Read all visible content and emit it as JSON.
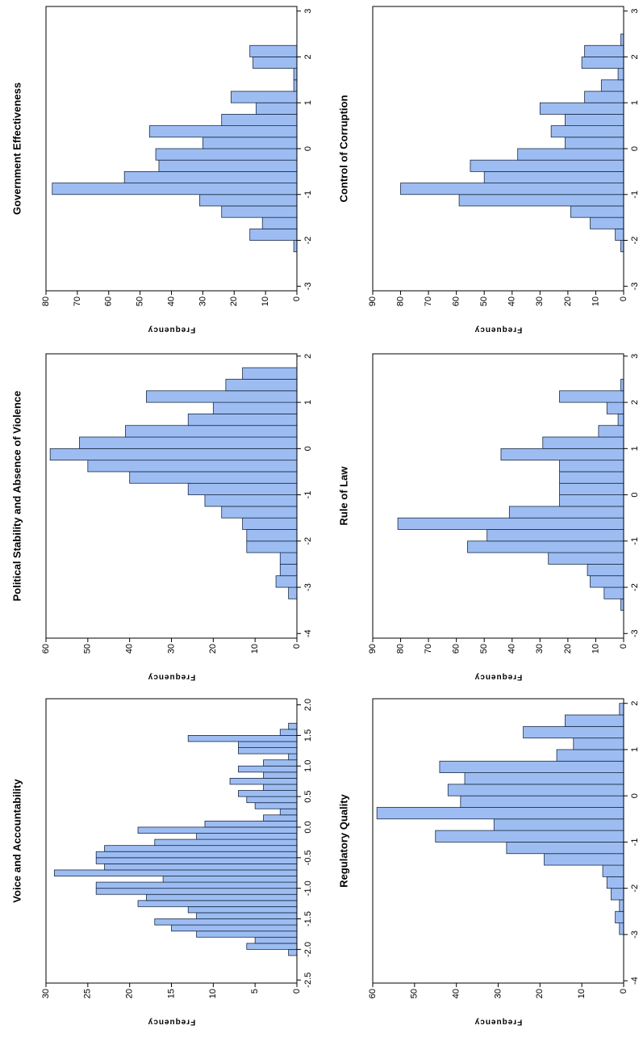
{
  "chart_data": [
    {
      "type": "histogram",
      "title": "Government Effectiveness",
      "ylabel": "Frequency",
      "color": "#9dbdf2",
      "bins": [
        -2.25,
        -2,
        -1.75,
        -1.5,
        -1.25,
        -1,
        -0.75,
        -0.5,
        -0.25,
        0,
        0.25,
        0.5,
        0.75,
        1,
        1.25,
        1.5,
        1.75,
        2,
        2.25
      ],
      "values": [
        1,
        15,
        11,
        24,
        31,
        78,
        55,
        44,
        45,
        30,
        47,
        24,
        13,
        21,
        1,
        1,
        14,
        15
      ],
      "xlim": [
        -3.1,
        3.1
      ],
      "ylim": [
        0,
        80
      ],
      "xticks": [
        -3,
        -2,
        -1,
        0,
        1,
        2,
        3
      ],
      "yticks": [
        0,
        10,
        20,
        30,
        40,
        50,
        60,
        70,
        80
      ]
    },
    {
      "type": "histogram",
      "title": "Control of Corruption",
      "ylabel": "Frequency",
      "color": "#9dbdf2",
      "bins": [
        -2.25,
        -2,
        -1.75,
        -1.5,
        -1.25,
        -1,
        -0.75,
        -0.5,
        -0.25,
        0,
        0.25,
        0.5,
        0.75,
        1,
        1.25,
        1.5,
        1.75,
        2,
        2.25,
        2.5
      ],
      "values": [
        1,
        3,
        12,
        19,
        59,
        80,
        50,
        55,
        38,
        21,
        26,
        21,
        30,
        14,
        8,
        2,
        15,
        14,
        1
      ],
      "xlim": [
        -3.1,
        3.1
      ],
      "ylim": [
        0,
        90
      ],
      "xticks": [
        -3,
        -2,
        -1,
        0,
        1,
        2,
        3
      ],
      "yticks": [
        0,
        10,
        20,
        30,
        40,
        50,
        60,
        70,
        80,
        90
      ]
    },
    {
      "type": "histogram",
      "title": "Political Stability and Absence of Violence",
      "ylabel": "Frequency",
      "color": "#9dbdf2",
      "bins": [
        -3.25,
        -3,
        -2.75,
        -2.5,
        -2.25,
        -2,
        -1.75,
        -1.5,
        -1.25,
        -1,
        -0.75,
        -0.5,
        -0.25,
        0,
        0.25,
        0.5,
        0.75,
        1,
        1.25,
        1.5,
        1.75
      ],
      "values": [
        2,
        5,
        4,
        4,
        12,
        12,
        13,
        18,
        22,
        26,
        40,
        50,
        59,
        52,
        41,
        26,
        20,
        36,
        17,
        13
      ],
      "xlim": [
        -4.1,
        2.05
      ],
      "ylim": [
        0,
        60
      ],
      "xticks": [
        -4,
        -3,
        -2,
        -1,
        0,
        1,
        2
      ],
      "yticks": [
        0,
        10,
        20,
        30,
        40,
        50,
        60
      ]
    },
    {
      "type": "histogram",
      "title": "Rule of Law",
      "ylabel": "Frequency",
      "color": "#9dbdf2",
      "bins": [
        -2.5,
        -2.25,
        -2,
        -1.75,
        -1.5,
        -1.25,
        -1,
        -0.75,
        -0.5,
        -0.25,
        0,
        0.25,
        0.5,
        0.75,
        1,
        1.25,
        1.5,
        1.75,
        2,
        2.25,
        2.5
      ],
      "values": [
        1,
        7,
        12,
        13,
        27,
        56,
        49,
        81,
        41,
        23,
        23,
        23,
        23,
        44,
        29,
        9,
        2,
        6,
        23,
        1
      ],
      "xlim": [
        -3.1,
        3.05
      ],
      "ylim": [
        0,
        90
      ],
      "xticks": [
        -3,
        -2,
        -1,
        0,
        1,
        2,
        3
      ],
      "yticks": [
        0,
        10,
        20,
        30,
        40,
        50,
        60,
        70,
        80,
        90
      ]
    },
    {
      "type": "histogram",
      "title": "Voice and Accountability",
      "ylabel": "Frequency",
      "color": "#9dbdf2",
      "bins": [
        -2.1,
        -2,
        -1.9,
        -1.8,
        -1.7,
        -1.6,
        -1.5,
        -1.4,
        -1.3,
        -1.2,
        -1.1,
        -1,
        -0.9,
        -0.8,
        -0.7,
        -0.6,
        -0.5,
        -0.4,
        -0.3,
        -0.2,
        -0.1,
        0,
        0.1,
        0.2,
        0.3,
        0.4,
        0.5,
        0.6,
        0.7,
        0.8,
        0.9,
        1,
        1.1,
        1.2,
        1.3,
        1.4,
        1.5,
        1.6,
        1.7
      ],
      "values": [
        1,
        6,
        5,
        12,
        15,
        17,
        12,
        13,
        19,
        18,
        24,
        24,
        16,
        29,
        23,
        24,
        24,
        23,
        17,
        12,
        19,
        11,
        4,
        2,
        5,
        6,
        7,
        4,
        8,
        4,
        7,
        4,
        1,
        7,
        7,
        13,
        2,
        1
      ],
      "xlim": [
        -2.55,
        2.1
      ],
      "ylim": [
        0,
        30
      ],
      "xticks": [
        {
          "value": -2.5,
          "label": "-2.5"
        },
        {
          "value": -2,
          "label": "-2.0"
        },
        {
          "value": -1.5,
          "label": "-1.5"
        },
        {
          "value": -1,
          "label": "-1.0"
        },
        {
          "value": -0.5,
          "label": "-0.5"
        },
        {
          "value": 0,
          "label": "0.0"
        },
        0.5,
        {
          "value": 1,
          "label": "1.0"
        },
        1.5,
        {
          "value": 2,
          "label": "2.0"
        }
      ],
      "yticks": [
        0,
        5,
        10,
        15,
        20,
        25,
        30
      ]
    },
    {
      "type": "histogram",
      "title": "Regulatory Quality",
      "ylabel": "Frequency",
      "color": "#9dbdf2",
      "bins": [
        -3,
        -2.75,
        -2.5,
        -2.25,
        -2,
        -1.75,
        -1.5,
        -1.25,
        -1,
        -0.75,
        -0.5,
        -0.25,
        0,
        0.25,
        0.5,
        0.75,
        1,
        1.25,
        1.5,
        1.75,
        2
      ],
      "values": [
        1,
        2,
        1,
        3,
        4,
        5,
        19,
        28,
        45,
        31,
        59,
        39,
        42,
        38,
        44,
        16,
        12,
        24,
        14,
        1
      ],
      "xlim": [
        -4.05,
        2.1
      ],
      "ylim": [
        0,
        60
      ],
      "xticks": [
        -4,
        -3,
        -2,
        -1,
        0,
        1,
        2
      ],
      "yticks": [
        0,
        10,
        20,
        30,
        40,
        50,
        60
      ]
    }
  ]
}
